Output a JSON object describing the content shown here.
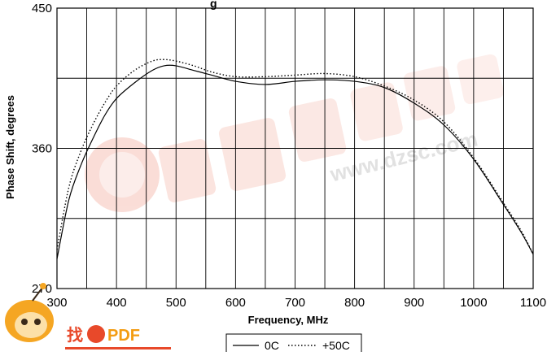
{
  "header": {
    "visible_text": "g"
  },
  "watermarks": {
    "site": "www.dzsc.com",
    "logo": "找PDF"
  },
  "chart_data": {
    "type": "line",
    "xlabel": "Frequency, MHz",
    "ylabel": "Phase Shift, degrees",
    "xlim": [
      300,
      1100
    ],
    "ylim": [
      270,
      450
    ],
    "x_ticks": [
      300,
      400,
      500,
      600,
      700,
      800,
      900,
      1000,
      1100
    ],
    "y_ticks": [
      270,
      360,
      450
    ],
    "y_gridlines": [
      270,
      315,
      360,
      405,
      450
    ],
    "x_gridlines": [
      300,
      350,
      400,
      450,
      500,
      550,
      600,
      650,
      700,
      750,
      800,
      850,
      900,
      950,
      1000,
      1050,
      1100
    ],
    "grid": true,
    "legend_position": "bottom-right",
    "series": [
      {
        "name": "0C",
        "style": "solid",
        "color": "#000000",
        "x": [
          300,
          320,
          340,
          360,
          380,
          400,
          430,
          460,
          480,
          500,
          530,
          560,
          600,
          650,
          700,
          750,
          800,
          850,
          900,
          950,
          1000,
          1050,
          1080,
          1100
        ],
        "y": [
          289,
          327,
          349,
          366,
          381,
          392,
          402,
          410,
          413,
          413,
          410,
          407,
          403,
          401,
          403,
          404,
          403,
          399,
          389,
          375,
          353,
          324,
          306,
          292
        ]
      },
      {
        "name": "+50C",
        "style": "dotted",
        "color": "#000000",
        "x": [
          300,
          320,
          340,
          360,
          380,
          400,
          430,
          460,
          480,
          500,
          530,
          560,
          600,
          650,
          700,
          750,
          800,
          850,
          900,
          950,
          1000,
          1050,
          1080,
          1100
        ],
        "y": [
          295,
          335,
          358,
          375,
          389,
          400,
          410,
          416,
          417,
          416,
          413,
          409,
          406,
          406,
          407,
          408,
          406,
          400,
          391,
          377,
          354,
          325,
          307,
          292
        ]
      }
    ]
  }
}
